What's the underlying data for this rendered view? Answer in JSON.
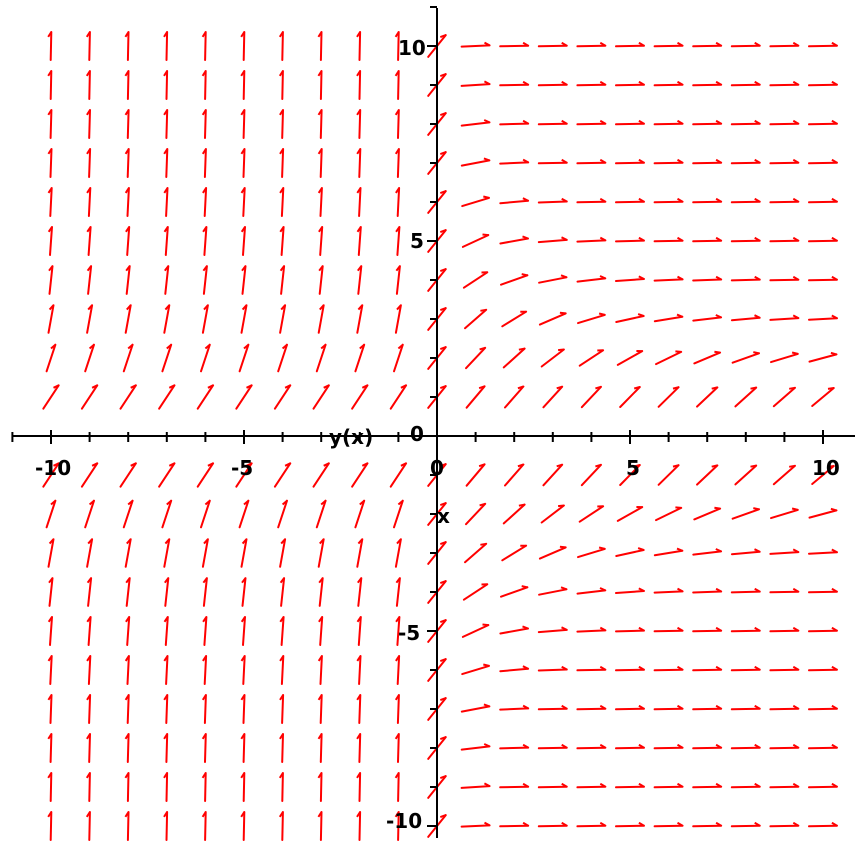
{
  "chart_data": {
    "type": "direction-field",
    "xlabel": "x",
    "ylabel": "y(x)",
    "xlim": [
      -11,
      11
    ],
    "ylim": [
      -11,
      11
    ],
    "x_ticks": [
      -10,
      -5,
      0,
      5,
      10
    ],
    "x_tick_labels": [
      "-10",
      "-5",
      "0",
      "5",
      "10"
    ],
    "y_ticks": [
      -10,
      -5,
      0,
      5,
      10
    ],
    "y_tick_labels": [
      "-10",
      "-5",
      "0",
      "5",
      "10"
    ],
    "grid": false,
    "arrow_color": "#ff0000",
    "axis_color": "#000000",
    "grid_x": [
      -10,
      -9,
      -8,
      -7,
      -6,
      -5,
      -4,
      -3,
      -2,
      -1,
      0,
      1,
      2,
      3,
      4,
      5,
      6,
      7,
      8,
      9,
      10
    ],
    "grid_y": [
      -10,
      -9,
      -8,
      -7,
      -6,
      -5,
      -4,
      -3,
      -2,
      -1,
      1,
      2,
      3,
      4,
      5,
      6,
      7,
      8,
      9,
      10
    ]
  }
}
